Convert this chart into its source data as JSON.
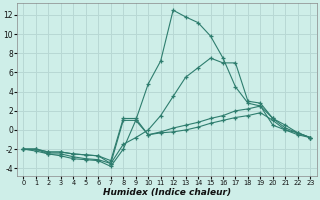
{
  "xlabel": "Humidex (Indice chaleur)",
  "background_color": "#ceeee8",
  "grid_color": "#b8d8d4",
  "line_color": "#2e7d6e",
  "xlim": [
    -0.5,
    23.5
  ],
  "ylim": [
    -4.8,
    13.2
  ],
  "xticks": [
    0,
    1,
    2,
    3,
    4,
    5,
    6,
    7,
    8,
    9,
    10,
    11,
    12,
    13,
    14,
    15,
    16,
    17,
    18,
    19,
    20,
    21,
    22,
    23
  ],
  "yticks": [
    -4,
    -2,
    0,
    2,
    4,
    6,
    8,
    10,
    12
  ],
  "lines": [
    {
      "x": [
        0,
        1,
        2,
        3,
        4,
        5,
        6,
        7,
        8,
        9,
        10,
        11,
        12,
        13,
        14,
        15,
        16,
        17,
        18,
        19,
        20,
        21,
        22,
        23
      ],
      "y": [
        -2,
        -2.2,
        -2.5,
        -2.7,
        -3,
        -3.1,
        -3.2,
        -3.8,
        -2.0,
        1.0,
        4.8,
        7.2,
        12.5,
        11.8,
        11.2,
        9.8,
        7.5,
        4.5,
        2.8,
        2.5,
        0.5,
        0.0,
        -0.3,
        -0.8
      ]
    },
    {
      "x": [
        0,
        1,
        2,
        3,
        4,
        5,
        6,
        7,
        8,
        9,
        10,
        11,
        12,
        13,
        14,
        15,
        16,
        17,
        18,
        19,
        20,
        21,
        22,
        23
      ],
      "y": [
        -2,
        -2,
        -2.5,
        -2.5,
        -2.8,
        -3.0,
        -3.1,
        -3.5,
        -1.5,
        -0.8,
        0,
        1.5,
        3.5,
        5.5,
        6.5,
        7.5,
        7.0,
        7.0,
        3.0,
        2.8,
        1.2,
        0.5,
        -0.3,
        -0.8
      ]
    },
    {
      "x": [
        0,
        1,
        2,
        3,
        4,
        5,
        6,
        7,
        8,
        9,
        10,
        11,
        12,
        13,
        14,
        15,
        16,
        17,
        18,
        19,
        20,
        21,
        22,
        23
      ],
      "y": [
        -2,
        -2,
        -2.3,
        -2.3,
        -2.5,
        -2.6,
        -2.7,
        -3.2,
        1.2,
        1.2,
        -0.5,
        -0.3,
        -0.2,
        0.0,
        0.3,
        0.7,
        1.0,
        1.3,
        1.5,
        1.8,
        1.0,
        0.0,
        -0.5,
        -0.8
      ]
    },
    {
      "x": [
        0,
        1,
        2,
        3,
        4,
        5,
        6,
        7,
        8,
        9,
        10,
        11,
        12,
        13,
        14,
        15,
        16,
        17,
        18,
        19,
        20,
        21,
        22,
        23
      ],
      "y": [
        -2,
        -2,
        -2.3,
        -2.3,
        -2.5,
        -2.6,
        -2.7,
        -3.5,
        1.0,
        1.0,
        -0.5,
        -0.2,
        0.2,
        0.5,
        0.8,
        1.2,
        1.5,
        2.0,
        2.2,
        2.5,
        1.2,
        0.2,
        -0.3,
        -0.8
      ]
    }
  ]
}
